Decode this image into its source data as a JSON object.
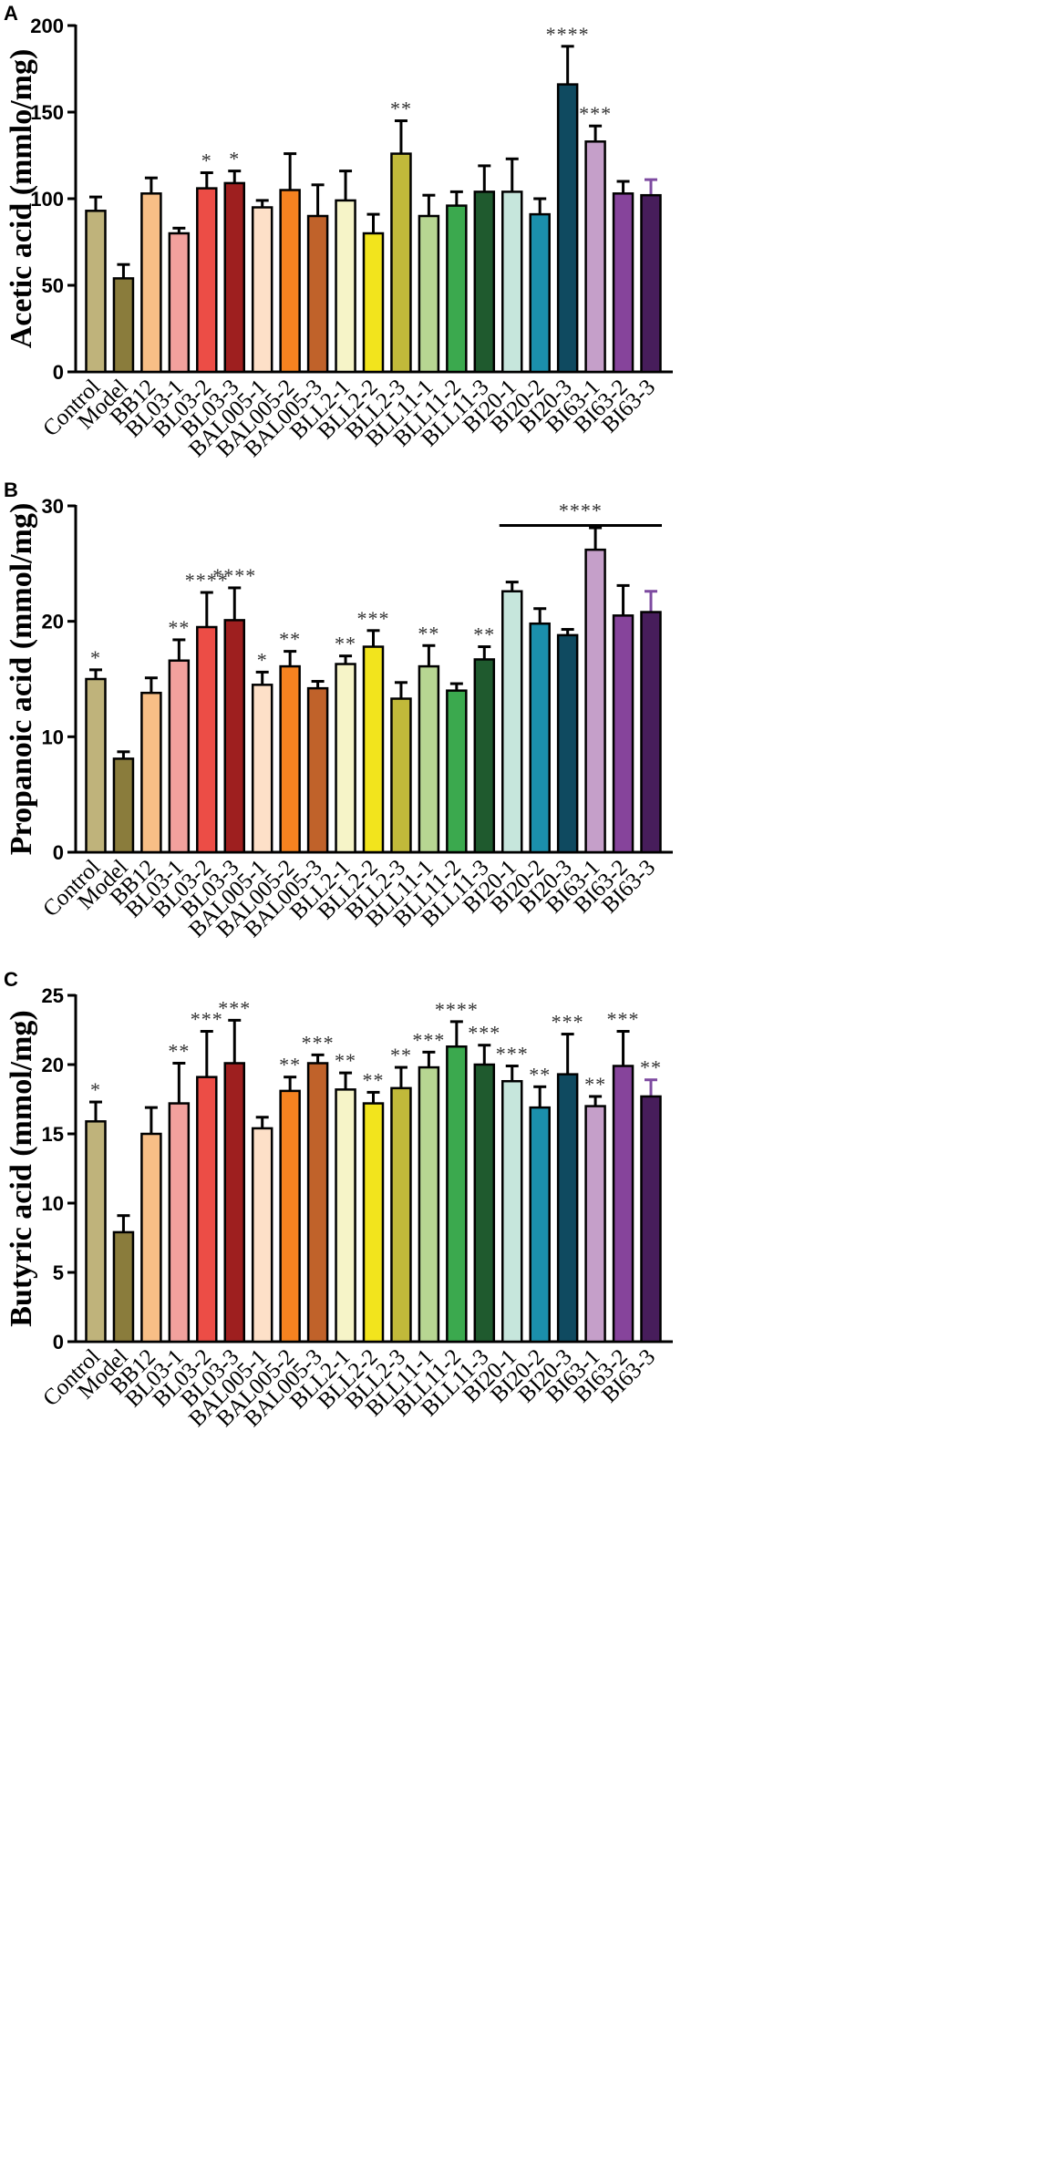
{
  "chart_data": [
    {
      "type": "bar",
      "panel": "A",
      "ylabel": "Acetic acid (mmlo/mg)",
      "ylim": [
        0,
        200
      ],
      "yticks": [
        0,
        50,
        100,
        150,
        200
      ],
      "categories": [
        "Control",
        "Model",
        "BB12",
        "BL03-1",
        "BL03-2",
        "BL03-3",
        "BAL005-1",
        "BAL005-2",
        "BAL005-3",
        "BLL2-1",
        "BLL2-2",
        "BLL2-3",
        "BLL11-1",
        "BLL11-2",
        "BLL11-3",
        "BI20-1",
        "BI20-2",
        "BI20-3",
        "BI63-1",
        "BI63-2",
        "BI63-3"
      ],
      "values": [
        93,
        54,
        103,
        80,
        106,
        109,
        95,
        105,
        90,
        99,
        80,
        126,
        90,
        96,
        104,
        104,
        91,
        166,
        133,
        103,
        102
      ],
      "errors": [
        8,
        8,
        9,
        3,
        9,
        7,
        4,
        21,
        18,
        17,
        11,
        19,
        12,
        8,
        15,
        19,
        9,
        22,
        9,
        7,
        9
      ],
      "significance": [
        "",
        "",
        "",
        "",
        "*",
        "*",
        "",
        "",
        "",
        "",
        "",
        "**",
        "",
        "",
        "",
        "",
        "",
        "****",
        "***",
        "",
        ""
      ],
      "bracket": null
    },
    {
      "type": "bar",
      "panel": "B",
      "ylabel": "Propanoic acid (mmol/mg)",
      "ylim": [
        0,
        30
      ],
      "yticks": [
        0,
        10,
        20,
        30
      ],
      "categories": [
        "Control",
        "Model",
        "BB12",
        "BL03-1",
        "BL03-2",
        "BL03-3",
        "BAL005-1",
        "BAL005-2",
        "BAL005-3",
        "BLL2-1",
        "BLL2-2",
        "BLL2-3",
        "BLL11-1",
        "BLL11-2",
        "BLL11-3",
        "BI20-1",
        "BI20-2",
        "BI20-3",
        "BI63-1",
        "BI63-2",
        "BI63-3"
      ],
      "values": [
        15.0,
        8.1,
        13.8,
        16.6,
        19.5,
        20.1,
        14.5,
        16.1,
        14.2,
        16.3,
        17.8,
        13.3,
        16.1,
        14.0,
        16.7,
        22.6,
        19.8,
        18.8,
        26.2,
        20.5,
        20.8
      ],
      "errors": [
        0.8,
        0.6,
        1.3,
        1.8,
        3.0,
        2.8,
        1.1,
        1.3,
        0.6,
        0.7,
        1.4,
        1.4,
        1.8,
        0.6,
        1.1,
        0.8,
        1.3,
        0.5,
        1.9,
        2.6,
        1.8
      ],
      "significance": [
        "*",
        "",
        "",
        "**",
        "****",
        "****",
        "*",
        "**",
        "",
        "**",
        "***",
        "",
        "**",
        "",
        "**",
        "",
        "",
        "",
        "",
        "",
        ""
      ],
      "bracket": {
        "from": 15,
        "to": 20,
        "label": "****"
      }
    },
    {
      "type": "bar",
      "panel": "C",
      "ylabel": "Butyric acid (mmol/mg)",
      "ylim": [
        0,
        25
      ],
      "yticks": [
        0,
        5,
        10,
        15,
        20,
        25
      ],
      "categories": [
        "Control",
        "Model",
        "BB12",
        "BL03-1",
        "BL03-2",
        "BL03-3",
        "BAL005-1",
        "BAL005-2",
        "BAL005-3",
        "BLL2-1",
        "BLL2-2",
        "BLL2-3",
        "BLL11-1",
        "BLL11-2",
        "BLL11-3",
        "BI20-1",
        "BI20-2",
        "BI20-3",
        "BI63-1",
        "BI63-2",
        "BI63-3"
      ],
      "values": [
        15.9,
        7.9,
        15.0,
        17.2,
        19.1,
        20.1,
        15.4,
        18.1,
        20.1,
        18.2,
        17.2,
        18.3,
        19.8,
        21.3,
        20.0,
        18.8,
        16.9,
        19.3,
        17.0,
        19.9,
        17.7
      ],
      "errors": [
        1.4,
        1.2,
        1.9,
        2.9,
        3.3,
        3.1,
        0.8,
        1.0,
        0.6,
        1.2,
        0.8,
        1.5,
        1.1,
        1.8,
        1.4,
        1.1,
        1.5,
        2.9,
        0.7,
        2.5,
        1.2
      ],
      "significance": [
        "*",
        "",
        "",
        "**",
        "***",
        "***",
        "",
        "**",
        "***",
        "**",
        "**",
        "**",
        "***",
        "****",
        "***",
        "***",
        "**",
        "***",
        "**",
        "***",
        "**"
      ],
      "bracket": null
    }
  ],
  "colors": [
    "#bfb37b",
    "#8a7c3c",
    "#f7be86",
    "#f2a19d",
    "#ec4d46",
    "#9e1f1f",
    "#fde0c8",
    "#f58220",
    "#c0622a",
    "#f6f4c8",
    "#f2e41d",
    "#c1b93a",
    "#b7d692",
    "#3ba94e",
    "#1f5a2e",
    "#c6e6dc",
    "#1b8fac",
    "#0f4a60",
    "#c59fc9",
    "#86449b",
    "#471d5b"
  ],
  "error_colors": {
    "BI63-3": "#7d4aa0"
  }
}
